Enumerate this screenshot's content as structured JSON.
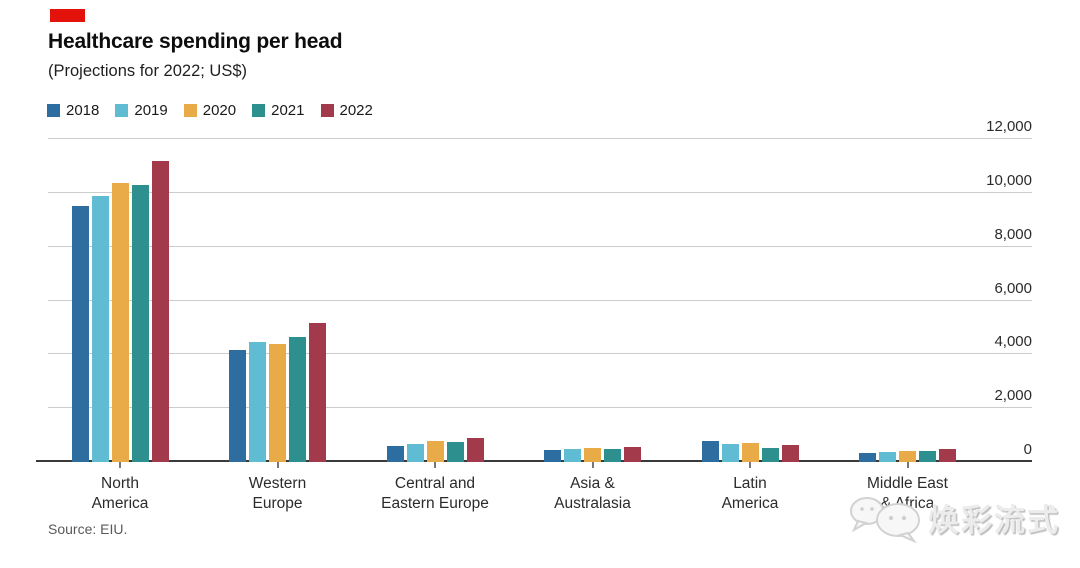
{
  "header": {
    "title": "Healthcare spending per head",
    "subtitle": "(Projections for 2022; US$)"
  },
  "colors": {
    "accent_tab": "#e3120b",
    "grid": "#cccccc",
    "axis": "#3a3a3a",
    "tick": "#777777"
  },
  "chart_data": {
    "type": "bar",
    "title": "Healthcare spending per head",
    "subtitle": "(Projections for 2022; US$)",
    "legend_position": "top",
    "grid": true,
    "categories": [
      "North America",
      "Western Europe",
      "Central and Eastern Europe",
      "Asia & Australasia",
      "Latin America",
      "Middle East & Africa"
    ],
    "x_label_lines": [
      [
        "North",
        "America"
      ],
      [
        "Western",
        "Europe"
      ],
      [
        "Central and",
        "Eastern Europe"
      ],
      [
        "Asia &",
        "Australasia"
      ],
      [
        "Latin",
        "America"
      ],
      [
        "Middle East",
        "& Africa"
      ]
    ],
    "series": [
      {
        "name": "2018",
        "color": "#2d6d9f",
        "values": [
          9500,
          4150,
          580,
          450,
          780,
          350
        ]
      },
      {
        "name": "2019",
        "color": "#5fbcd3",
        "values": [
          9900,
          4450,
          660,
          480,
          680,
          390
        ]
      },
      {
        "name": "2020",
        "color": "#e9ab47",
        "values": [
          10350,
          4400,
          780,
          520,
          700,
          420
        ]
      },
      {
        "name": "2021",
        "color": "#2e8f8f",
        "values": [
          10300,
          4650,
          760,
          500,
          510,
          400
        ]
      },
      {
        "name": "2022",
        "color": "#a23a4b",
        "values": [
          11200,
          5150,
          880,
          560,
          630,
          480
        ]
      }
    ],
    "ylabel": "",
    "xlabel": "",
    "ylim": [
      0,
      12000
    ],
    "yticks": [
      0,
      2000,
      4000,
      6000,
      8000,
      10000,
      12000
    ],
    "ytick_labels": [
      "0",
      "2,000",
      "4,000",
      "6,000",
      "8,000",
      "10,000",
      "12,000"
    ]
  },
  "source": "Source: EIU.",
  "watermark": {
    "text": "焕彩流式",
    "icon": "chat-bubbles-icon"
  }
}
